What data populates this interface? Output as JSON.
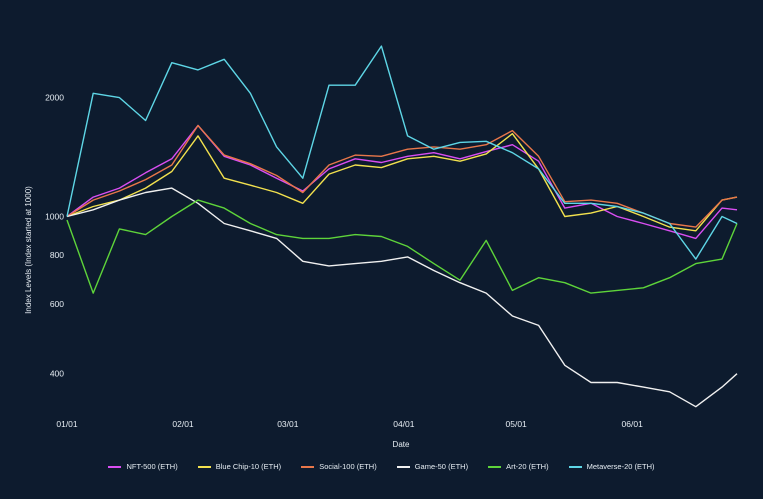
{
  "chart_data": {
    "type": "line",
    "title": "",
    "xlabel": "Date",
    "ylabel": "Index Levels (Index started at 1000)",
    "yscale": "log",
    "ylim": [
      320,
      3000
    ],
    "xlim": [
      "2022-01-01",
      "2022-06-29"
    ],
    "x_ticks": [
      "01/01",
      "02/01",
      "03/01",
      "04/01",
      "05/01",
      "06/01"
    ],
    "y_ticks": [
      400,
      600,
      800,
      1000,
      2000
    ],
    "grid": false,
    "legend_position": "bottom",
    "dates": [
      "2022-01-01",
      "2022-01-08",
      "2022-01-15",
      "2022-01-22",
      "2022-01-29",
      "2022-02-05",
      "2022-02-12",
      "2022-02-19",
      "2022-02-26",
      "2022-03-05",
      "2022-03-12",
      "2022-03-19",
      "2022-03-26",
      "2022-04-02",
      "2022-04-09",
      "2022-04-16",
      "2022-04-23",
      "2022-04-30",
      "2022-05-07",
      "2022-05-14",
      "2022-05-21",
      "2022-05-28",
      "2022-06-04",
      "2022-06-11",
      "2022-06-18",
      "2022-06-25",
      "2022-06-29"
    ],
    "series": [
      {
        "name": "NFT-500 (ETH)",
        "color": "#d94ef2",
        "values": [
          1000,
          1120,
          1180,
          1290,
          1400,
          1700,
          1420,
          1350,
          1250,
          1160,
          1320,
          1400,
          1370,
          1420,
          1450,
          1400,
          1460,
          1520,
          1380,
          1050,
          1080,
          1000,
          960,
          920,
          880,
          1050,
          1040
        ]
      },
      {
        "name": "Blue Chip-10 (ETH)",
        "color": "#f2e14e",
        "values": [
          1000,
          1060,
          1100,
          1180,
          1300,
          1600,
          1250,
          1200,
          1150,
          1080,
          1280,
          1350,
          1330,
          1400,
          1420,
          1380,
          1440,
          1620,
          1320,
          1000,
          1020,
          1060,
          1000,
          940,
          920,
          1100,
          1120
        ]
      },
      {
        "name": "Social-100 (ETH)",
        "color": "#e8774a",
        "values": [
          1000,
          1100,
          1160,
          1240,
          1350,
          1700,
          1430,
          1360,
          1270,
          1150,
          1350,
          1430,
          1420,
          1480,
          1500,
          1480,
          1520,
          1650,
          1420,
          1090,
          1100,
          1080,
          1020,
          960,
          940,
          1100,
          1120
        ]
      },
      {
        "name": "Game-50 (ETH)",
        "color": "#f0f0f0",
        "values": [
          1000,
          1040,
          1100,
          1150,
          1180,
          1080,
          960,
          920,
          880,
          770,
          750,
          760,
          770,
          790,
          730,
          680,
          640,
          560,
          530,
          420,
          380,
          380,
          370,
          360,
          330,
          370,
          400
        ]
      },
      {
        "name": "Art-20 (ETH)",
        "color": "#5ed43a",
        "values": [
          980,
          640,
          930,
          900,
          1000,
          1100,
          1050,
          960,
          900,
          880,
          880,
          900,
          890,
          840,
          760,
          690,
          870,
          650,
          700,
          680,
          640,
          650,
          660,
          700,
          760,
          780,
          960
        ]
      },
      {
        "name": "Metaverse-20 (ETH)",
        "color": "#5ed6e6",
        "values": [
          1000,
          2050,
          2000,
          1750,
          2450,
          2350,
          2500,
          2050,
          1500,
          1250,
          2150,
          2150,
          2700,
          1600,
          1480,
          1540,
          1550,
          1450,
          1320,
          1080,
          1080,
          1060,
          1020,
          960,
          780,
          1000,
          960
        ]
      }
    ]
  }
}
